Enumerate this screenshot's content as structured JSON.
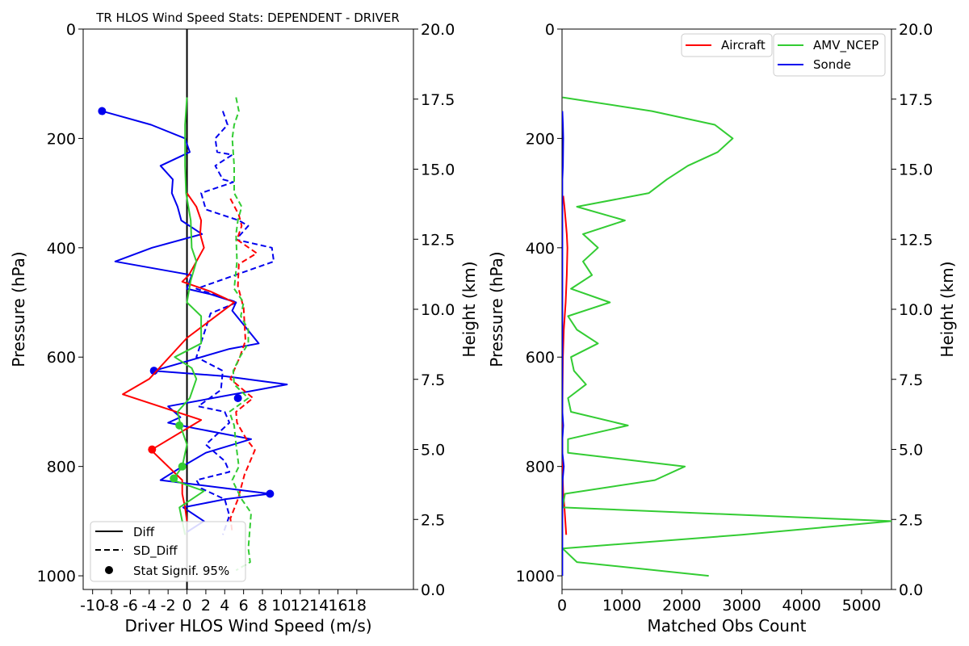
{
  "chart_data": [
    {
      "type": "line",
      "title": "TR HLOS Wind Speed Stats: DEPENDENT - DRIVER",
      "xlabel": "Driver HLOS Wind Speed (m/s)",
      "ylabel": "Pressure (hPa)",
      "ylabel_right": "Height (km)",
      "xlim": [
        -11,
        24
      ],
      "ylim": [
        1025,
        0
      ],
      "xticks": [
        "-10",
        "-8",
        "-6",
        "-4",
        "-2",
        "0",
        "2",
        "4",
        "6",
        "8",
        "10",
        "12",
        "14",
        "16",
        "18"
      ],
      "yticks": [
        "0",
        "200",
        "400",
        "600",
        "800",
        "1000"
      ],
      "yticks_right": [
        "0.0",
        "2.5",
        "5.0",
        "7.5",
        "10.0",
        "12.5",
        "15.0",
        "17.5",
        "20.0"
      ],
      "legend": {
        "position": "lower-left",
        "entries": [
          "Diff",
          "SD_Diff",
          "Stat Signif. 95%"
        ]
      },
      "series": [
        {
          "color": "#0000ee",
          "style": "solid",
          "points": [
            [
              -9,
              150
            ],
            [
              -3.8,
              175
            ],
            [
              -0.2,
              200
            ],
            [
              0.3,
              225
            ],
            [
              -2.8,
              250
            ],
            [
              -1.5,
              275
            ],
            [
              -1.6,
              300
            ],
            [
              -1,
              325
            ],
            [
              -0.6,
              350
            ],
            [
              1.6,
              375
            ],
            [
              -3.7,
              400
            ],
            [
              -7.6,
              425
            ],
            [
              0.5,
              450
            ],
            [
              0,
              475
            ],
            [
              2.5,
              485
            ],
            [
              5.2,
              500
            ],
            [
              4.8,
              515
            ],
            [
              7.6,
              575
            ],
            [
              4.5,
              585
            ],
            [
              -3.5,
              625
            ],
            [
              4,
              635
            ],
            [
              10.6,
              650
            ],
            [
              -2,
              690
            ],
            [
              -0.7,
              710
            ],
            [
              -2,
              720
            ],
            [
              0.8,
              730
            ],
            [
              6.8,
              750
            ],
            [
              2,
              775
            ],
            [
              -0.5,
              800
            ],
            [
              -2.8,
              825
            ],
            [
              8.8,
              850
            ],
            [
              4,
              860
            ],
            [
              -0.4,
              875
            ],
            [
              1.8,
              900
            ],
            [
              0,
              920
            ]
          ],
          "markers": [
            [
              -9,
              150
            ],
            [
              -3.5,
              625
            ],
            [
              5.4,
              675
            ],
            [
              8.8,
              850
            ]
          ]
        },
        {
          "color": "#0000ee",
          "style": "dashed",
          "points": [
            [
              3.8,
              150
            ],
            [
              4.3,
              175
            ],
            [
              3,
              200
            ],
            [
              3.2,
              225
            ],
            [
              4.8,
              230
            ],
            [
              3,
              250
            ],
            [
              3.8,
              275
            ],
            [
              4.9,
              280
            ],
            [
              1.5,
              300
            ],
            [
              2,
              330
            ],
            [
              5.5,
              350
            ],
            [
              6.5,
              360
            ],
            [
              5.2,
              385
            ],
            [
              9,
              400
            ],
            [
              9.2,
              425
            ],
            [
              1,
              475
            ],
            [
              5.3,
              500
            ],
            [
              2.5,
              520
            ],
            [
              1,
              600
            ],
            [
              3.8,
              625
            ],
            [
              3.6,
              660
            ],
            [
              1.2,
              690
            ],
            [
              4,
              700
            ],
            [
              4.5,
              720
            ],
            [
              2,
              760
            ],
            [
              4,
              790
            ],
            [
              4.5,
              810
            ],
            [
              1,
              825
            ],
            [
              1.5,
              840
            ],
            [
              4,
              860
            ],
            [
              4.5,
              890
            ],
            [
              3.8,
              925
            ]
          ]
        },
        {
          "color": "#ff0000",
          "style": "solid",
          "points": [
            [
              0,
              300
            ],
            [
              1,
              325
            ],
            [
              1.5,
              350
            ],
            [
              1.4,
              375
            ],
            [
              1.8,
              400
            ],
            [
              0.2,
              450
            ],
            [
              -0.5,
              462
            ],
            [
              2.5,
              480
            ],
            [
              5,
              500
            ],
            [
              0,
              565
            ],
            [
              -4,
              640
            ],
            [
              -6.8,
              668
            ],
            [
              1.5,
              715
            ],
            [
              -3.8,
              770
            ],
            [
              -0.5,
              825
            ],
            [
              -0.5,
              850
            ],
            [
              -0.2,
              875
            ],
            [
              0,
              900
            ]
          ],
          "markers": [
            [
              -3.7,
              769
            ]
          ]
        },
        {
          "color": "#ff0000",
          "style": "dashed",
          "points": [
            [
              4.6,
              310
            ],
            [
              5.5,
              340
            ],
            [
              5.8,
              360
            ],
            [
              5.3,
              385
            ],
            [
              7.4,
              410
            ],
            [
              5.5,
              430
            ],
            [
              5.4,
              470
            ],
            [
              6,
              510
            ],
            [
              6.2,
              570
            ],
            [
              5.6,
              600
            ],
            [
              4.6,
              640
            ],
            [
              7,
              675
            ],
            [
              5.2,
              700
            ],
            [
              5.3,
              720
            ],
            [
              6.3,
              750
            ],
            [
              7.2,
              770
            ],
            [
              6.1,
              815
            ],
            [
              5.4,
              860
            ],
            [
              4.6,
              895
            ],
            [
              4.8,
              920
            ]
          ]
        },
        {
          "color": "#33cc33",
          "style": "solid",
          "points": [
            [
              0,
              125
            ],
            [
              -0.2,
              175
            ],
            [
              -0.2,
              250
            ],
            [
              -0.1,
              300
            ],
            [
              0.4,
              350
            ],
            [
              0.5,
              400
            ],
            [
              1,
              425
            ],
            [
              0.4,
              460
            ],
            [
              0,
              500
            ],
            [
              1.5,
              525
            ],
            [
              1.5,
              575
            ],
            [
              -1.3,
              600
            ],
            [
              0.5,
              620
            ],
            [
              1,
              640
            ],
            [
              0.3,
              675
            ],
            [
              -1,
              700
            ],
            [
              -0.6,
              730
            ],
            [
              0,
              760
            ],
            [
              -0.5,
              800
            ],
            [
              -1.5,
              825
            ],
            [
              1.8,
              845
            ],
            [
              -0.8,
              875
            ],
            [
              -0.5,
              900
            ],
            [
              -0.2,
              925
            ]
          ],
          "markers": [
            [
              -0.8,
              725
            ],
            [
              -0.5,
              800
            ],
            [
              -1.4,
              822
            ]
          ]
        },
        {
          "color": "#33cc33",
          "style": "dashed",
          "points": [
            [
              5.2,
              125
            ],
            [
              5.5,
              150
            ],
            [
              5,
              175
            ],
            [
              4.8,
              200
            ],
            [
              5,
              250
            ],
            [
              5,
              300
            ],
            [
              5.8,
              325
            ],
            [
              5.4,
              350
            ],
            [
              5.2,
              375
            ],
            [
              5.3,
              425
            ],
            [
              5,
              475
            ],
            [
              6,
              500
            ],
            [
              5.7,
              525
            ],
            [
              6.5,
              550
            ],
            [
              6.5,
              575
            ],
            [
              5.6,
              600
            ],
            [
              4.9,
              625
            ],
            [
              5,
              650
            ],
            [
              6.5,
              675
            ],
            [
              4.5,
              700
            ],
            [
              5,
              725
            ],
            [
              5.2,
              760
            ],
            [
              5.5,
              800
            ],
            [
              4.8,
              825
            ],
            [
              5.8,
              860
            ],
            [
              6.8,
              885
            ],
            [
              6.5,
              950
            ],
            [
              6.7,
              975
            ],
            [
              5.2,
              990
            ]
          ],
          "markers": []
        }
      ]
    },
    {
      "type": "line",
      "title": "",
      "xlabel": "Matched Obs Count",
      "ylabel": "Pressure (hPa)",
      "ylabel_right": "Height (km)",
      "xlim": [
        0,
        5500
      ],
      "ylim": [
        1025,
        0
      ],
      "xticks": [
        "0",
        "1000",
        "2000",
        "3000",
        "4000",
        "5000"
      ],
      "yticks": [
        "0",
        "200",
        "400",
        "600",
        "800",
        "1000"
      ],
      "yticks_right": [
        "0.0",
        "2.5",
        "5.0",
        "7.5",
        "10.0",
        "12.5",
        "15.0",
        "17.5",
        "20.0"
      ],
      "legend": {
        "position": "top-right",
        "entries": [
          "Aircraft",
          "AMV_NCEP",
          "Sonde"
        ]
      },
      "series": [
        {
          "name": "Aircraft",
          "color": "#ff0000",
          "style": "solid",
          "points": [
            [
              20,
              305
            ],
            [
              40,
              325
            ],
            [
              60,
              350
            ],
            [
              80,
              375
            ],
            [
              90,
              400
            ],
            [
              80,
              450
            ],
            [
              60,
              500
            ],
            [
              30,
              550
            ],
            [
              15,
              600
            ],
            [
              10,
              650
            ],
            [
              5,
              700
            ],
            [
              5,
              750
            ],
            [
              5,
              800
            ],
            [
              20,
              850
            ],
            [
              40,
              875
            ],
            [
              70,
              925
            ]
          ]
        },
        {
          "name": "AMV_NCEP",
          "color": "#33cc33",
          "style": "solid",
          "points": [
            [
              10,
              125
            ],
            [
              1500,
              150
            ],
            [
              2550,
              175
            ],
            [
              2850,
              200
            ],
            [
              2600,
              225
            ],
            [
              2100,
              250
            ],
            [
              1750,
              275
            ],
            [
              1450,
              300
            ],
            [
              250,
              325
            ],
            [
              1050,
              350
            ],
            [
              350,
              375
            ],
            [
              600,
              400
            ],
            [
              350,
              425
            ],
            [
              500,
              450
            ],
            [
              150,
              475
            ],
            [
              800,
              500
            ],
            [
              100,
              525
            ],
            [
              250,
              550
            ],
            [
              600,
              575
            ],
            [
              150,
              600
            ],
            [
              200,
              625
            ],
            [
              400,
              650
            ],
            [
              100,
              675
            ],
            [
              150,
              700
            ],
            [
              1100,
              725
            ],
            [
              100,
              750
            ],
            [
              100,
              775
            ],
            [
              2050,
              800
            ],
            [
              1550,
              825
            ],
            [
              50,
              850
            ],
            [
              10,
              875
            ],
            [
              5500,
              900
            ],
            [
              3000,
              925
            ],
            [
              10,
              950
            ],
            [
              250,
              975
            ],
            [
              2450,
              1000
            ]
          ]
        },
        {
          "name": "Sonde",
          "color": "#0000ee",
          "style": "solid",
          "points": [
            [
              5,
              150
            ],
            [
              15,
              175
            ],
            [
              20,
              200
            ],
            [
              15,
              250
            ],
            [
              5,
              275
            ],
            [
              5,
              300
            ],
            [
              5,
              700
            ],
            [
              20,
              725
            ],
            [
              5,
              750
            ],
            [
              5,
              775
            ],
            [
              30,
              800
            ],
            [
              10,
              825
            ],
            [
              5,
              850
            ],
            [
              5,
              875
            ],
            [
              5,
              900
            ],
            [
              5,
              925
            ],
            [
              5,
              950
            ],
            [
              5,
              975
            ],
            [
              5,
              1000
            ]
          ]
        }
      ]
    }
  ]
}
